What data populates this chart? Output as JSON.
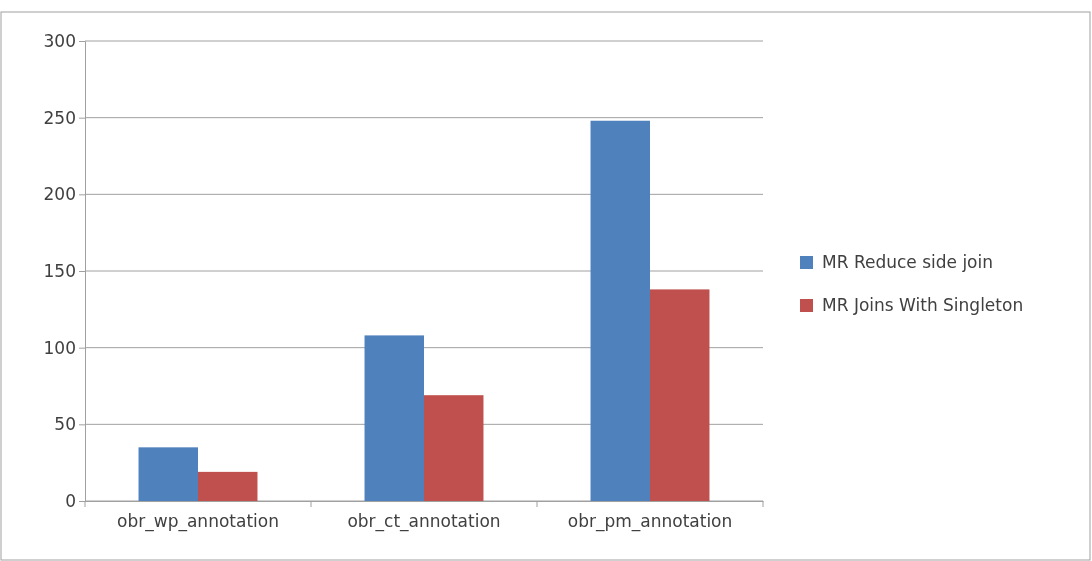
{
  "chart_data": {
    "type": "bar",
    "categories": [
      "obr_wp_annotation",
      "obr_ct_annotation",
      "obr_pm_annotation"
    ],
    "series": [
      {
        "name": "MR Reduce side join",
        "color": "#4f81bd",
        "values": [
          35,
          108,
          248
        ]
      },
      {
        "name": "MR Joins With Singleton",
        "color": "#c0504d",
        "values": [
          19,
          69,
          138
        ]
      }
    ],
    "ylim": [
      0,
      300
    ],
    "yticks": [
      0,
      50,
      100,
      150,
      200,
      250,
      300
    ],
    "grid": "y",
    "legend": "right"
  }
}
